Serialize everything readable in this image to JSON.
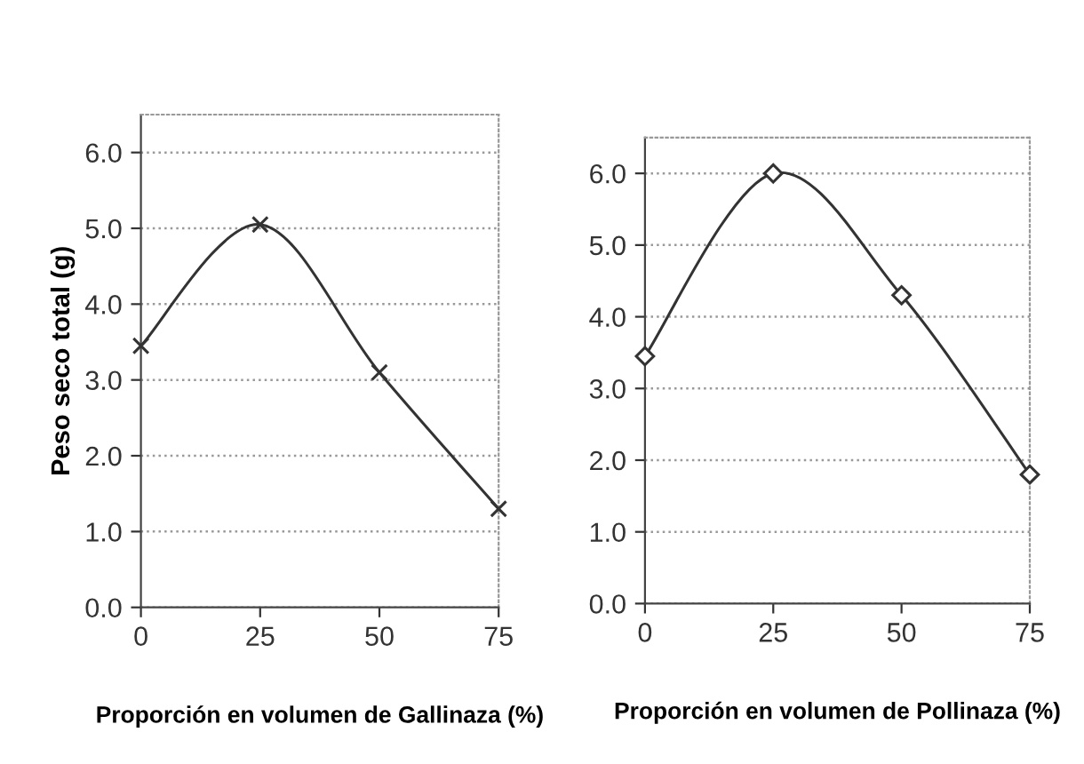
{
  "chart_data": [
    {
      "type": "line",
      "xlabel": "Proporción en volumen de Gallinaza (%)",
      "ylabel": "Peso seco total (g)",
      "x": [
        0,
        25,
        50,
        75
      ],
      "series": [
        {
          "color": "#333333",
          "values": [
            3.45,
            5.05,
            3.1,
            1.3
          ]
        }
      ],
      "xlim": [
        0,
        75
      ],
      "xticks": [
        0,
        25,
        50,
        75
      ],
      "ylim": [
        0,
        6.5
      ],
      "yticks": [
        {
          "value": 0,
          "label": "0.0"
        },
        {
          "value": 1,
          "label": "1.0"
        },
        {
          "value": 2,
          "label": "2.0"
        },
        {
          "value": 3,
          "label": "3.0"
        },
        {
          "value": 4,
          "label": "4.0"
        },
        {
          "value": 5,
          "label": "5.0"
        },
        {
          "value": 6,
          "label": "6.0"
        }
      ],
      "grid": "y",
      "marker": "cross"
    },
    {
      "type": "line",
      "xlabel": "Proporción en volumen de Pollinaza (%)",
      "x": [
        0,
        25,
        50,
        75
      ],
      "series": [
        {
          "color": "#333333",
          "values": [
            3.45,
            6.0,
            4.3,
            1.8
          ]
        }
      ],
      "xlim": [
        0,
        75
      ],
      "xticks": [
        0,
        25,
        50,
        75
      ],
      "ylim": [
        0,
        6.5
      ],
      "yticks": [
        {
          "value": 0,
          "label": "0.0"
        },
        {
          "value": 1,
          "label": "1.0"
        },
        {
          "value": 2,
          "label": "2.0"
        },
        {
          "value": 3,
          "label": "3.0"
        },
        {
          "value": 4,
          "label": "4.0"
        },
        {
          "value": 5,
          "label": "5.0"
        },
        {
          "value": 6,
          "label": "6.0"
        }
      ],
      "grid": "y",
      "marker": "diamond"
    }
  ]
}
